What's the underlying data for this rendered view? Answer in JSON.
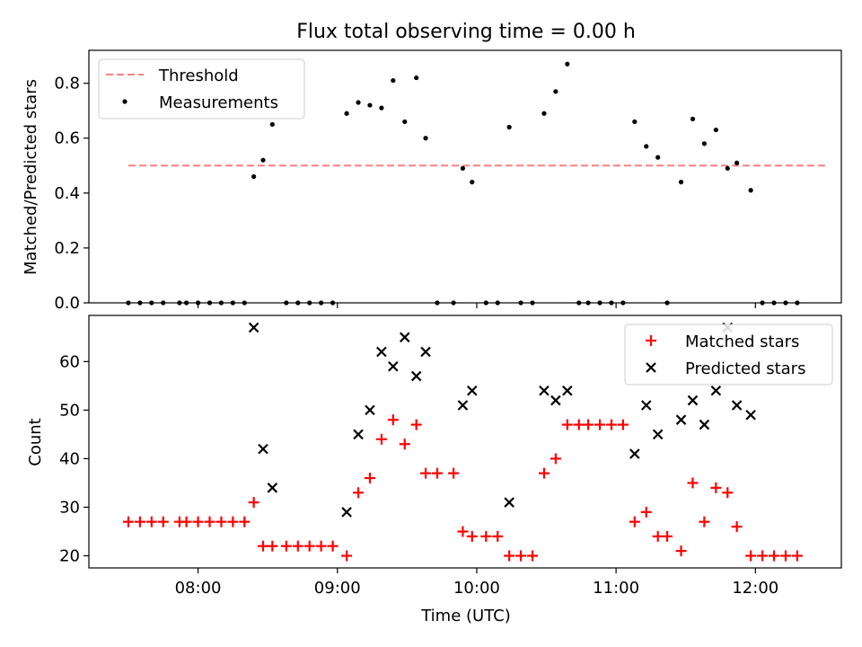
{
  "title": "Flux total observing time = 0.00 h",
  "chart_data": [
    {
      "type": "scatter",
      "panel": "top",
      "xlabel": "",
      "ylabel": "Matched/Predicted stars",
      "xlim": [
        "07:13",
        "12:37"
      ],
      "ylim": [
        0,
        0.92
      ],
      "yticks": [
        0.0,
        0.2,
        0.4,
        0.6,
        0.8
      ],
      "ytick_labels": [
        "0.0",
        "0.2",
        "0.4",
        "0.6",
        "0.8"
      ],
      "legend_position": "top-left",
      "threshold": {
        "name": "Threshold",
        "value": 0.5,
        "x_range": [
          "07:30",
          "12:30"
        ],
        "color": "#ff7f7f"
      },
      "series": [
        {
          "name": "Measurements",
          "marker": "dot",
          "color": "#000000",
          "x": [
            "07:30",
            "07:35",
            "07:40",
            "07:45",
            "07:52",
            "07:55",
            "08:00",
            "08:05",
            "08:10",
            "08:15",
            "08:20",
            "08:24",
            "08:28",
            "08:32",
            "08:38",
            "08:43",
            "08:48",
            "08:53",
            "08:58",
            "09:04",
            "09:09",
            "09:14",
            "09:19",
            "09:24",
            "09:29",
            "09:34",
            "09:38",
            "09:43",
            "09:50",
            "09:54",
            "09:58",
            "10:04",
            "10:09",
            "10:14",
            "10:19",
            "10:24",
            "10:29",
            "10:34",
            "10:39",
            "10:44",
            "10:48",
            "10:53",
            "10:58",
            "11:03",
            "11:08",
            "11:13",
            "11:18",
            "11:22",
            "11:28",
            "11:33",
            "11:38",
            "11:43",
            "11:48",
            "11:52",
            "11:58",
            "12:03",
            "12:08",
            "12:13",
            "12:18"
          ],
          "y": [
            0,
            0,
            0,
            0,
            0,
            0,
            0,
            0,
            0,
            0,
            0,
            0.46,
            0.52,
            0.65,
            0,
            0,
            0,
            0,
            0,
            0.69,
            0.73,
            0.72,
            0.71,
            0.81,
            0.66,
            0.82,
            0.6,
            0,
            0,
            0.49,
            0.44,
            0,
            0,
            0.64,
            0,
            0,
            0.69,
            0.77,
            0.87,
            0,
            0,
            0,
            0,
            0,
            0.66,
            0.57,
            0.53,
            0,
            0.44,
            0.67,
            0.58,
            0.63,
            0.49,
            0.51,
            0.41,
            0,
            0,
            0,
            0
          ]
        }
      ]
    },
    {
      "type": "scatter",
      "panel": "bottom",
      "xlabel": "Time (UTC)",
      "ylabel": "Count",
      "xlim": [
        "07:13",
        "12:37"
      ],
      "xticks": [
        "08:00",
        "09:00",
        "10:00",
        "11:00",
        "12:00"
      ],
      "ylim": [
        17.5,
        69.5
      ],
      "yticks": [
        20,
        30,
        40,
        50,
        60
      ],
      "legend_position": "top-right",
      "series": [
        {
          "name": "Matched stars",
          "marker": "plus",
          "color": "#ff0000",
          "x": [
            "07:30",
            "07:35",
            "07:40",
            "07:45",
            "07:52",
            "07:55",
            "08:00",
            "08:05",
            "08:10",
            "08:15",
            "08:20",
            "08:24",
            "08:28",
            "08:32",
            "08:38",
            "08:43",
            "08:48",
            "08:53",
            "08:58",
            "09:04",
            "09:09",
            "09:14",
            "09:19",
            "09:24",
            "09:29",
            "09:34",
            "09:38",
            "09:43",
            "09:50",
            "09:54",
            "09:58",
            "10:04",
            "10:09",
            "10:14",
            "10:19",
            "10:24",
            "10:29",
            "10:34",
            "10:39",
            "10:44",
            "10:48",
            "10:53",
            "10:58",
            "11:03",
            "11:08",
            "11:13",
            "11:18",
            "11:22",
            "11:28",
            "11:33",
            "11:38",
            "11:43",
            "11:48",
            "11:52",
            "11:58",
            "12:03",
            "12:08",
            "12:13",
            "12:18"
          ],
          "y": [
            27,
            27,
            27,
            27,
            27,
            27,
            27,
            27,
            27,
            27,
            27,
            31,
            22,
            22,
            22,
            22,
            22,
            22,
            22,
            20,
            33,
            36,
            44,
            48,
            43,
            47,
            37,
            37,
            37,
            25,
            24,
            24,
            24,
            20,
            20,
            20,
            37,
            40,
            47,
            47,
            47,
            47,
            47,
            47,
            27,
            29,
            24,
            24,
            21,
            35,
            27,
            34,
            33,
            26,
            20,
            20,
            20,
            20,
            20
          ]
        },
        {
          "name": "Predicted stars",
          "marker": "cross",
          "color": "#000000",
          "x": [
            "08:24",
            "08:28",
            "08:32",
            "09:04",
            "09:09",
            "09:14",
            "09:19",
            "09:24",
            "09:29",
            "09:34",
            "09:38",
            "09:54",
            "09:58",
            "10:14",
            "10:29",
            "10:34",
            "10:39",
            "11:08",
            "11:13",
            "11:18",
            "11:28",
            "11:33",
            "11:38",
            "11:43",
            "11:48",
            "11:52",
            "11:58"
          ],
          "y": [
            67,
            42,
            34,
            29,
            45,
            50,
            62,
            59,
            65,
            57,
            62,
            51,
            54,
            31,
            54,
            52,
            54,
            41,
            51,
            45,
            48,
            52,
            47,
            54,
            67,
            51,
            49
          ]
        }
      ]
    }
  ]
}
